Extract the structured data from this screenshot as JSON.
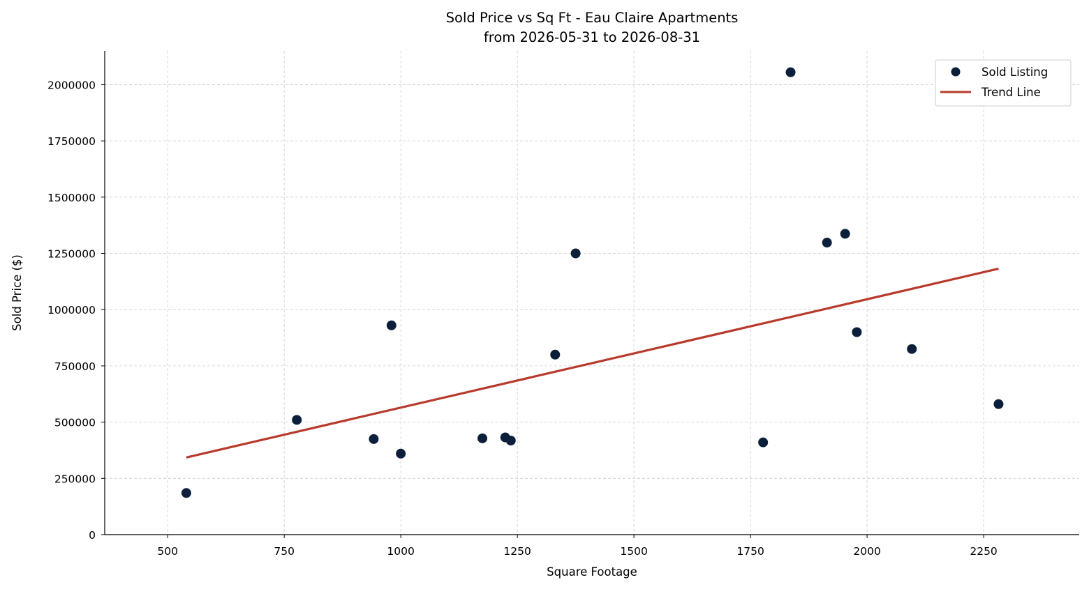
{
  "chart_data": {
    "type": "scatter",
    "title": "Sold Price vs Sq Ft - Eau Claire Apartments",
    "subtitle": "from 2026-05-31 to 2026-08-31",
    "xlabel": "Square Footage",
    "ylabel": "Sold Price ($)",
    "xlim": [
      365,
      2455
    ],
    "ylim": [
      0,
      2150000
    ],
    "xticks": [
      500,
      750,
      1000,
      1250,
      1500,
      1750,
      2000,
      2250
    ],
    "yticks": [
      0,
      250000,
      500000,
      750000,
      1000000,
      1250000,
      1500000,
      1750000,
      2000000
    ],
    "grid": true,
    "legend_position": "top-right",
    "colors": {
      "points": "#0b1f3a",
      "trend": "#b83a2c"
    },
    "series": [
      {
        "name": "Sold Listing",
        "kind": "scatter",
        "points": [
          {
            "x": 540,
            "y": 185000
          },
          {
            "x": 777,
            "y": 510000
          },
          {
            "x": 942,
            "y": 425000
          },
          {
            "x": 980,
            "y": 930000
          },
          {
            "x": 1000,
            "y": 360000
          },
          {
            "x": 1175,
            "y": 428000
          },
          {
            "x": 1224,
            "y": 432000
          },
          {
            "x": 1236,
            "y": 418000
          },
          {
            "x": 1331,
            "y": 800000
          },
          {
            "x": 1375,
            "y": 1250000
          },
          {
            "x": 1777,
            "y": 410000
          },
          {
            "x": 1836,
            "y": 2055000
          },
          {
            "x": 1914,
            "y": 1298000
          },
          {
            "x": 1953,
            "y": 1337000
          },
          {
            "x": 1978,
            "y": 900000
          },
          {
            "x": 2096,
            "y": 825000
          },
          {
            "x": 2282,
            "y": 580000
          }
        ]
      },
      {
        "name": "Trend Line",
        "kind": "line",
        "points": [
          {
            "x": 540,
            "y": 343000
          },
          {
            "x": 2282,
            "y": 1182000
          }
        ]
      }
    ]
  }
}
